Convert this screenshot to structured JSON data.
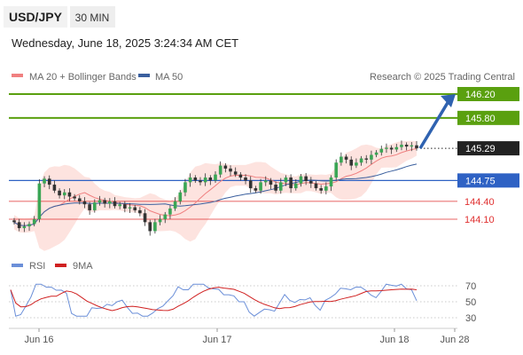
{
  "header": {
    "symbol": "USD/JPY",
    "timeframe": "30 MIN",
    "datetime": "Wednesday, June 18, 2025 3:24:34 AM CET"
  },
  "legend": {
    "bollinger": "MA 20 + Bollinger Bands",
    "ma50": "MA 50",
    "credit": "Research © 2025 Trading Central"
  },
  "colors": {
    "green": "#5aa00f",
    "blue": "#2f62c4",
    "red": "#e03030",
    "current": "#222222",
    "ma20": "#f08080",
    "band": "#fde0dc",
    "ma50": "#3a5f9e",
    "rsi": "#6b8fd8",
    "rsi_ma": "#d02020",
    "arrow": "#2f62b0"
  },
  "rsi_legend": {
    "rsi": "RSI",
    "ma": "9MA"
  },
  "chart_data": [
    {
      "type": "candlestick",
      "title": "USD/JPY 30 MIN",
      "x_labels": [
        "Jun 16",
        "Jun 17",
        "Jun 18",
        "Jun 28"
      ],
      "current_price": 145.29,
      "levels": [
        {
          "value": 146.2,
          "label": "146.20",
          "kind": "resistance"
        },
        {
          "value": 145.8,
          "label": "145.80",
          "kind": "resistance"
        },
        {
          "value": 145.29,
          "label": "145.29",
          "kind": "current"
        },
        {
          "value": 144.75,
          "label": "144.75",
          "kind": "pivot"
        },
        {
          "value": 144.4,
          "label": "144.40",
          "kind": "support"
        },
        {
          "value": 144.1,
          "label": "144.10",
          "kind": "support"
        }
      ],
      "closes": [
        144.05,
        143.95,
        143.98,
        144.02,
        144.1,
        144.7,
        144.78,
        144.68,
        144.58,
        144.5,
        144.55,
        144.48,
        144.45,
        144.4,
        144.35,
        144.25,
        144.38,
        144.42,
        144.36,
        144.4,
        144.32,
        144.35,
        144.28,
        144.3,
        144.25,
        144.2,
        144.05,
        143.9,
        144.05,
        144.1,
        144.18,
        144.28,
        144.4,
        144.55,
        144.72,
        144.8,
        144.75,
        144.72,
        144.8,
        144.75,
        144.85,
        145.0,
        144.95,
        144.9,
        144.85,
        144.8,
        144.75,
        144.62,
        144.58,
        144.72,
        144.75,
        144.68,
        144.58,
        144.72,
        144.8,
        144.62,
        144.7,
        144.82,
        144.74,
        144.7,
        144.62,
        144.58,
        144.65,
        144.8,
        145.05,
        145.15,
        145.1,
        145.0,
        145.05,
        145.12,
        145.1,
        145.18,
        145.22,
        145.28,
        145.3,
        145.27,
        145.31,
        145.35,
        145.32,
        145.34,
        145.29
      ]
    },
    {
      "type": "line",
      "title": "RSI",
      "series": [
        {
          "name": "RSI"
        },
        {
          "name": "9MA"
        }
      ],
      "y_ticks": [
        70,
        50,
        30
      ]
    }
  ]
}
